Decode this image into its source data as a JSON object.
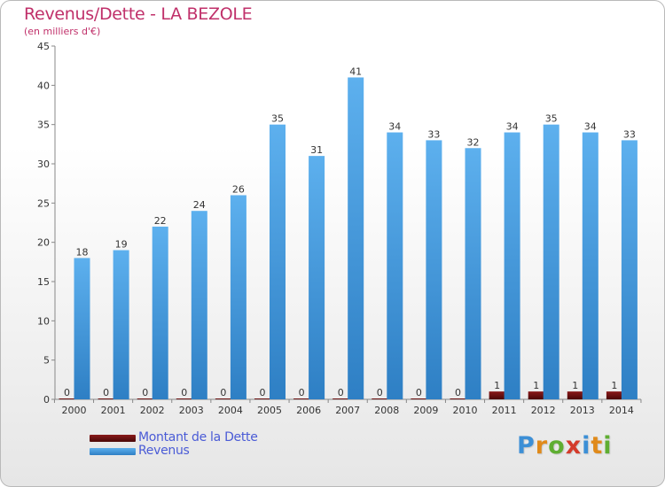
{
  "title": "Revenus/Dette - LA BEZOLE",
  "subtitle": "(en milliers d'€)",
  "logo": {
    "text": "Proxiti",
    "letters": [
      "P",
      "r",
      "o",
      "x",
      "i",
      "t",
      "i"
    ],
    "colors": [
      "#3c8fd6",
      "#e08a1a",
      "#5fae32",
      "#d43a2a",
      "#3c8fd6",
      "#e08a1a",
      "#5fae32"
    ]
  },
  "legend": [
    {
      "label": "Montant de la Dette",
      "color": "#7a1010"
    },
    {
      "label": "Revenus",
      "color": "#4aa3e6"
    }
  ],
  "chart_data": {
    "type": "bar",
    "title": "Revenus/Dette - LA BEZOLE",
    "subtitle": "(en milliers d'€)",
    "categories": [
      "2000",
      "2001",
      "2002",
      "2003",
      "2004",
      "2005",
      "2006",
      "2007",
      "2008",
      "2009",
      "2010",
      "2011",
      "2012",
      "2013",
      "2014"
    ],
    "series": [
      {
        "name": "Montant de la Dette",
        "color": "#7a1010",
        "values": [
          0,
          0,
          0,
          0,
          0,
          0,
          0,
          0,
          0,
          0,
          0,
          1,
          1,
          1,
          1
        ]
      },
      {
        "name": "Revenus",
        "color": "#4aa3e6",
        "values": [
          18,
          19,
          22,
          24,
          26,
          35,
          31,
          41,
          34,
          33,
          32,
          34,
          35,
          34,
          33
        ]
      }
    ],
    "yticks": [
      0,
      5,
      10,
      15,
      20,
      25,
      30,
      35,
      40,
      45
    ],
    "ylim": [
      0,
      45
    ],
    "grid": false,
    "legend_position": "bottom-left"
  }
}
